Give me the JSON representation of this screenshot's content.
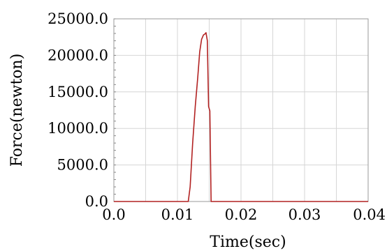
{
  "chart_data": {
    "type": "line",
    "xlabel": "Time(sec)",
    "ylabel": "Force(newton)",
    "xlim": [
      0,
      0.04
    ],
    "ylim": [
      0,
      25000
    ],
    "grid": true,
    "x_ticks": [
      0,
      0.01,
      0.02,
      0.03,
      0.04
    ],
    "x_tick_labels": [
      "0.0",
      "0.01",
      "0.02",
      "0.03",
      "0.04"
    ],
    "y_ticks": [
      0,
      5000,
      10000,
      15000,
      20000,
      25000
    ],
    "y_tick_labels": [
      "0.0",
      "5000.0",
      "10000.0",
      "15000.0",
      "20000.0",
      "25000.0"
    ],
    "series": [
      {
        "color": "#b22222",
        "x": [
          0,
          0.0117,
          0.012,
          0.0124,
          0.0128,
          0.0132,
          0.0135,
          0.0138,
          0.0141,
          0.0143,
          0.0145,
          0.0147,
          0.0149,
          0.0151,
          0.0153,
          0.04
        ],
        "y": [
          0,
          0,
          2000,
          8000,
          13000,
          17000,
          20500,
          22200,
          22800,
          22900,
          23100,
          22000,
          13000,
          12400,
          0,
          0
        ]
      }
    ]
  }
}
